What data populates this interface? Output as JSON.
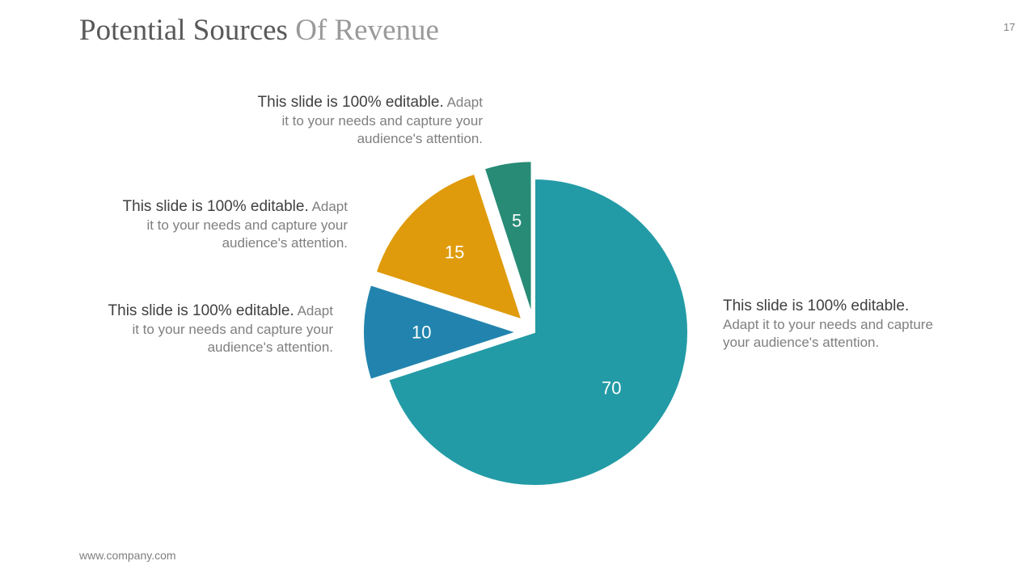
{
  "slide": {
    "title_part1": "Potential Sources",
    "title_part2": "Of Revenue",
    "page_number": "17",
    "footer": "www.company.com"
  },
  "callouts": [
    {
      "lead": "This slide is 100% editable.",
      "line1_rest": "Adapt",
      "line2": "it to your needs and capture your",
      "line3": "audience's attention."
    },
    {
      "lead": "This slide is 100% editable.",
      "line1_rest": "Adapt",
      "line2": "it to your needs and capture your",
      "line3": "audience's attention."
    },
    {
      "lead": "This slide is 100% editable.",
      "line1_rest": "Adapt",
      "line2": "it to your needs and capture your",
      "line3": "audience's attention."
    },
    {
      "lead": "This slide is 100% editable.",
      "line2": "Adapt it to your needs and capture",
      "line3": "your audience's attention."
    }
  ],
  "chart_data": {
    "type": "pie",
    "values": [
      70,
      10,
      15,
      5
    ],
    "labels": [
      "70",
      "10",
      "15",
      "5"
    ],
    "colors": [
      "#239ba6",
      "#2284ae",
      "#df9b0b",
      "#278b76"
    ],
    "exploded": [
      false,
      true,
      true,
      true
    ],
    "start_angle": "12 o'clock, clockwise",
    "legend": "none"
  }
}
